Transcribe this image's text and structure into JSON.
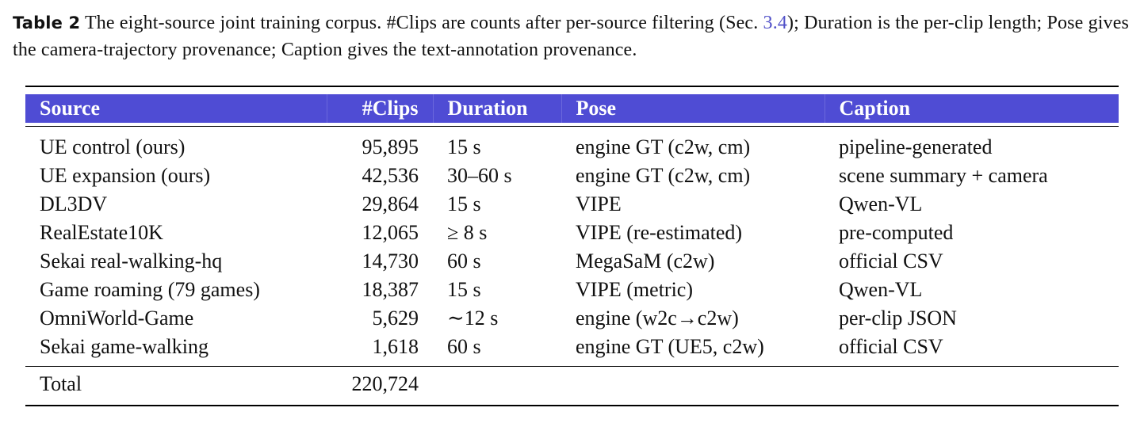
{
  "caption": {
    "label": "Table 2",
    "text_1": "The eight-source joint training corpus. #Clips are counts after per-source filtering (Sec.",
    "ref": "3.4",
    "text_2": "); Duration is the per-clip length; Pose gives the camera-trajectory provenance; Caption gives the text-annotation provenance."
  },
  "table": {
    "headers": {
      "source": "Source",
      "clips": "#Clips",
      "duration": "Duration",
      "pose": "Pose",
      "caption": "Caption"
    },
    "rows": [
      {
        "source": "UE control (ours)",
        "clips": "95,895",
        "duration": "15 s",
        "pose": "engine GT (c2w, cm)",
        "caption": "pipeline-generated"
      },
      {
        "source": "UE expansion (ours)",
        "clips": "42,536",
        "duration": "30–60 s",
        "pose": "engine GT (c2w, cm)",
        "caption": "scene summary + camera"
      },
      {
        "source": "DL3DV",
        "clips": "29,864",
        "duration": "15 s",
        "pose": "VIPE",
        "caption": "Qwen-VL"
      },
      {
        "source": "RealEstate10K",
        "clips": "12,065",
        "duration": "≥ 8 s",
        "pose": "VIPE (re-estimated)",
        "caption": "pre-computed"
      },
      {
        "source": "Sekai real-walking-hq",
        "clips": "14,730",
        "duration": "60 s",
        "pose": "MegaSaM (c2w)",
        "caption": "official CSV"
      },
      {
        "source": "Game roaming (79 games)",
        "clips": "18,387",
        "duration": "15 s",
        "pose": "VIPE (metric)",
        "caption": "Qwen-VL"
      },
      {
        "source": "OmniWorld-Game",
        "clips": "5,629",
        "duration": "∼12 s",
        "pose": "engine (w2c→c2w)",
        "caption": "per-clip JSON"
      },
      {
        "source": "Sekai game-walking",
        "clips": "1,618",
        "duration": "60 s",
        "pose": "engine GT (UE5, c2w)",
        "caption": "official CSV"
      }
    ],
    "total": {
      "label": "Total",
      "clips": "220,724"
    }
  },
  "colors": {
    "header_bg": "#4f4cd4",
    "header_text": "#ffffff",
    "ref_link": "#5050c8"
  }
}
